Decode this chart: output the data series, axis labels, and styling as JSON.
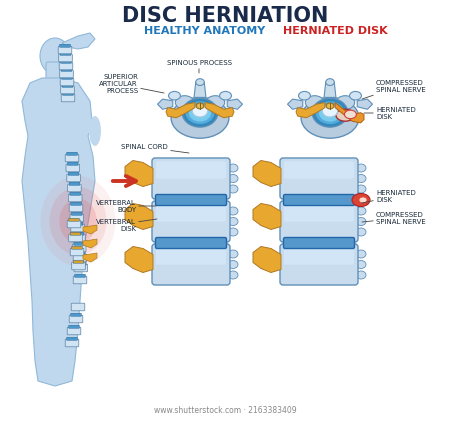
{
  "title": "DISC HERNIATION",
  "title_color": "#1a2a4a",
  "subtitle_left": "HEALTHY ANATOMY",
  "subtitle_left_color": "#2277bb",
  "subtitle_right": "HERNIATED DISK",
  "subtitle_right_color": "#cc2222",
  "bg_color": "#ffffff",
  "watermark": "www.shutterstock.com · 2163383409",
  "sil_color": "#c0d8ee",
  "sil_edge": "#90b8d8",
  "pain_color": "#e05050",
  "vertebra_fill": "#c8ddf0",
  "vertebra_edge": "#6090b8",
  "disk_blue": "#4499cc",
  "disk_red": "#cc4433",
  "nerve_fill": "#e8a830",
  "nerve_edge": "#b07820",
  "process_fill": "#b8cce0",
  "canal_blue": "#3388bb",
  "nucleus_fill": "#e8f4ff",
  "cord_fill": "#e8b850"
}
